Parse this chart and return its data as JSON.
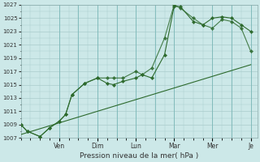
{
  "xlabel": "Pression niveau de la mer( hPa )",
  "bg_color": "#cce8e8",
  "grid_color": "#aacccc",
  "line_color": "#2d6a2d",
  "ylim": [
    1007,
    1027
  ],
  "ytick_min": 1007,
  "ytick_max": 1027,
  "ytick_step": 2,
  "day_labels": [
    "",
    "Ven",
    "",
    "Dim",
    "",
    "Lun",
    "",
    "Mar",
    "Mer",
    "",
    "Je"
  ],
  "day_positions": [
    0,
    24,
    36,
    48,
    60,
    72,
    84,
    96,
    120,
    132,
    144
  ],
  "xlim": [
    0,
    148
  ],
  "series1_x": [
    0,
    4,
    12,
    18,
    24,
    28,
    32,
    40,
    48,
    54,
    58,
    64,
    72,
    76,
    82,
    90,
    96,
    100,
    108,
    114,
    120,
    126,
    132,
    138,
    144
  ],
  "series1_y": [
    1009,
    1008,
    1007.2,
    1008.5,
    1009.5,
    1010.5,
    1013.5,
    1015.2,
    1016,
    1015.2,
    1015,
    1015.5,
    1016,
    1016.5,
    1016,
    1019.5,
    1026.8,
    1026.7,
    1024.5,
    1024,
    1025,
    1025.2,
    1025,
    1024,
    1023
  ],
  "series2_x": [
    0,
    4,
    12,
    18,
    24,
    28,
    32,
    40,
    48,
    54,
    58,
    64,
    72,
    76,
    82,
    90,
    96,
    100,
    108,
    114,
    120,
    126,
    132,
    138,
    144
  ],
  "series2_y": [
    1009,
    1008,
    1007.2,
    1008.5,
    1009.5,
    1010.5,
    1013.5,
    1015.2,
    1016,
    1016,
    1016,
    1016,
    1017,
    1016.5,
    1017.5,
    1022,
    1027,
    1026.5,
    1025,
    1024,
    1023.5,
    1024.8,
    1024.5,
    1023.5,
    1020
  ],
  "series3_x": [
    0,
    144
  ],
  "series3_y": [
    1007.5,
    1018
  ]
}
